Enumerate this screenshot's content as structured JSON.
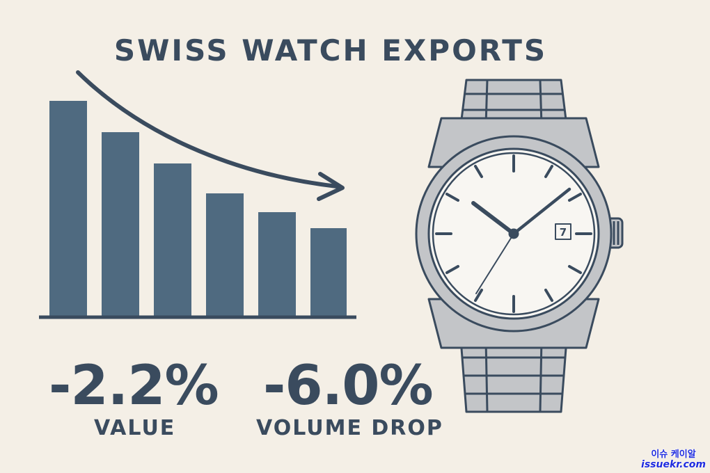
{
  "title": "SWISS WATCH EXPORTS",
  "colors": {
    "background": "#f4efe6",
    "bar": "#4f6a80",
    "ink": "#3a4b5e",
    "watch_steel": "#c3c5c8",
    "watermark": "#1f2ce0"
  },
  "stats": [
    {
      "value": "-2.2%",
      "label": "VALUE"
    },
    {
      "value": "-6.0%",
      "label": "VOLUME DROP"
    }
  ],
  "watch": {
    "date_window": "7"
  },
  "watermark": {
    "line1": "이슈 케이알",
    "line2": "issuekr.com"
  },
  "icons": [
    "bar-chart-icon",
    "downward-trend-arrow-icon",
    "wristwatch-icon"
  ]
}
